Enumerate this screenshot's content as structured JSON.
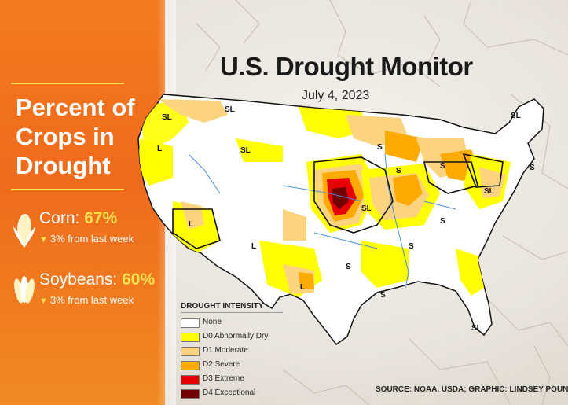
{
  "panel": {
    "title_lines": [
      "Percent of",
      "Crops in",
      "Drought"
    ],
    "corn": {
      "name": "Corn:",
      "percent": "67%",
      "change": "3% from last week",
      "icon": "corn-icon"
    },
    "soybeans": {
      "name": "Soybeans:",
      "percent": "60%",
      "change": "3% from last week",
      "icon": "soybean-icon"
    }
  },
  "map": {
    "title": "U.S. Drought Monitor",
    "date": "July 4, 2023",
    "labels": [
      "SL",
      "SL",
      "L",
      "SL",
      "S",
      "S",
      "S",
      "SL",
      "S",
      "SL",
      "SL",
      "L",
      "L",
      "L",
      "S",
      "S",
      "S",
      "SL",
      "S"
    ]
  },
  "legend": {
    "title": "DROUGHT INTENSITY",
    "items": [
      {
        "label": "None",
        "color": "#ffffff"
      },
      {
        "label": "D0 Abnormally Dry",
        "color": "#ffff00"
      },
      {
        "label": "D1 Moderate",
        "color": "#fcd37f"
      },
      {
        "label": "D2 Severe",
        "color": "#ffaa00"
      },
      {
        "label": "D3 Extreme",
        "color": "#e60000"
      },
      {
        "label": "D4 Exceptional",
        "color": "#730000"
      }
    ]
  },
  "source": "SOURCE: NOAA, USDA; GRAPHIC: LINDSEY POUND"
}
